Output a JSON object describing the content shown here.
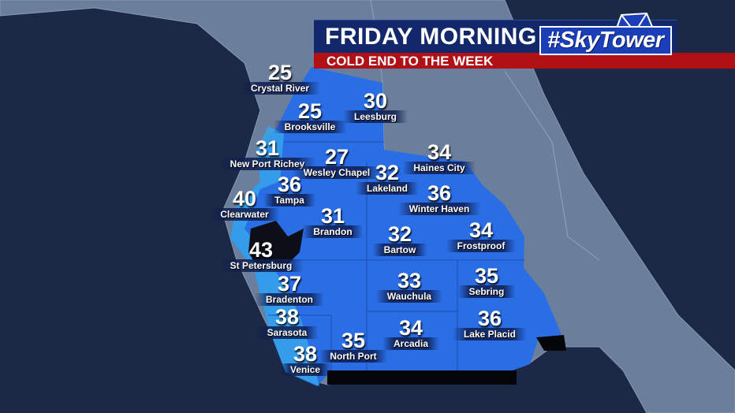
{
  "header": {
    "title": "FRIDAY MORNING",
    "subtitle": "COLD END TO THE WEEK",
    "logo": "#SkyTower"
  },
  "colors": {
    "ocean": "#1b2846",
    "land": "#6b7f9c",
    "forecast_region": "#2a6ee6",
    "coastal_region": "#38a8ee",
    "title_bar": "#13286a",
    "subtitle_bar": "#b01016"
  },
  "cities": [
    {
      "name": "Crystal River",
      "temp": "25"
    },
    {
      "name": "Brooksville",
      "temp": "25"
    },
    {
      "name": "Leesburg",
      "temp": "30"
    },
    {
      "name": "New Port Richey",
      "temp": "31"
    },
    {
      "name": "Wesley Chapel",
      "temp": "27"
    },
    {
      "name": "Lakeland",
      "temp": "32"
    },
    {
      "name": "Haines City",
      "temp": "34"
    },
    {
      "name": "Tampa",
      "temp": "36"
    },
    {
      "name": "Winter Haven",
      "temp": "36"
    },
    {
      "name": "Clearwater",
      "temp": "40"
    },
    {
      "name": "Brandon",
      "temp": "31"
    },
    {
      "name": "Bartow",
      "temp": "32"
    },
    {
      "name": "Frostproof",
      "temp": "34"
    },
    {
      "name": "St Petersburg",
      "temp": "43"
    },
    {
      "name": "Bradenton",
      "temp": "37"
    },
    {
      "name": "Wauchula",
      "temp": "33"
    },
    {
      "name": "Sebring",
      "temp": "35"
    },
    {
      "name": "Sarasota",
      "temp": "38"
    },
    {
      "name": "Arcadia",
      "temp": "34"
    },
    {
      "name": "Lake Placid",
      "temp": "36"
    },
    {
      "name": "North Port",
      "temp": "35"
    },
    {
      "name": "Venice",
      "temp": "38"
    }
  ]
}
